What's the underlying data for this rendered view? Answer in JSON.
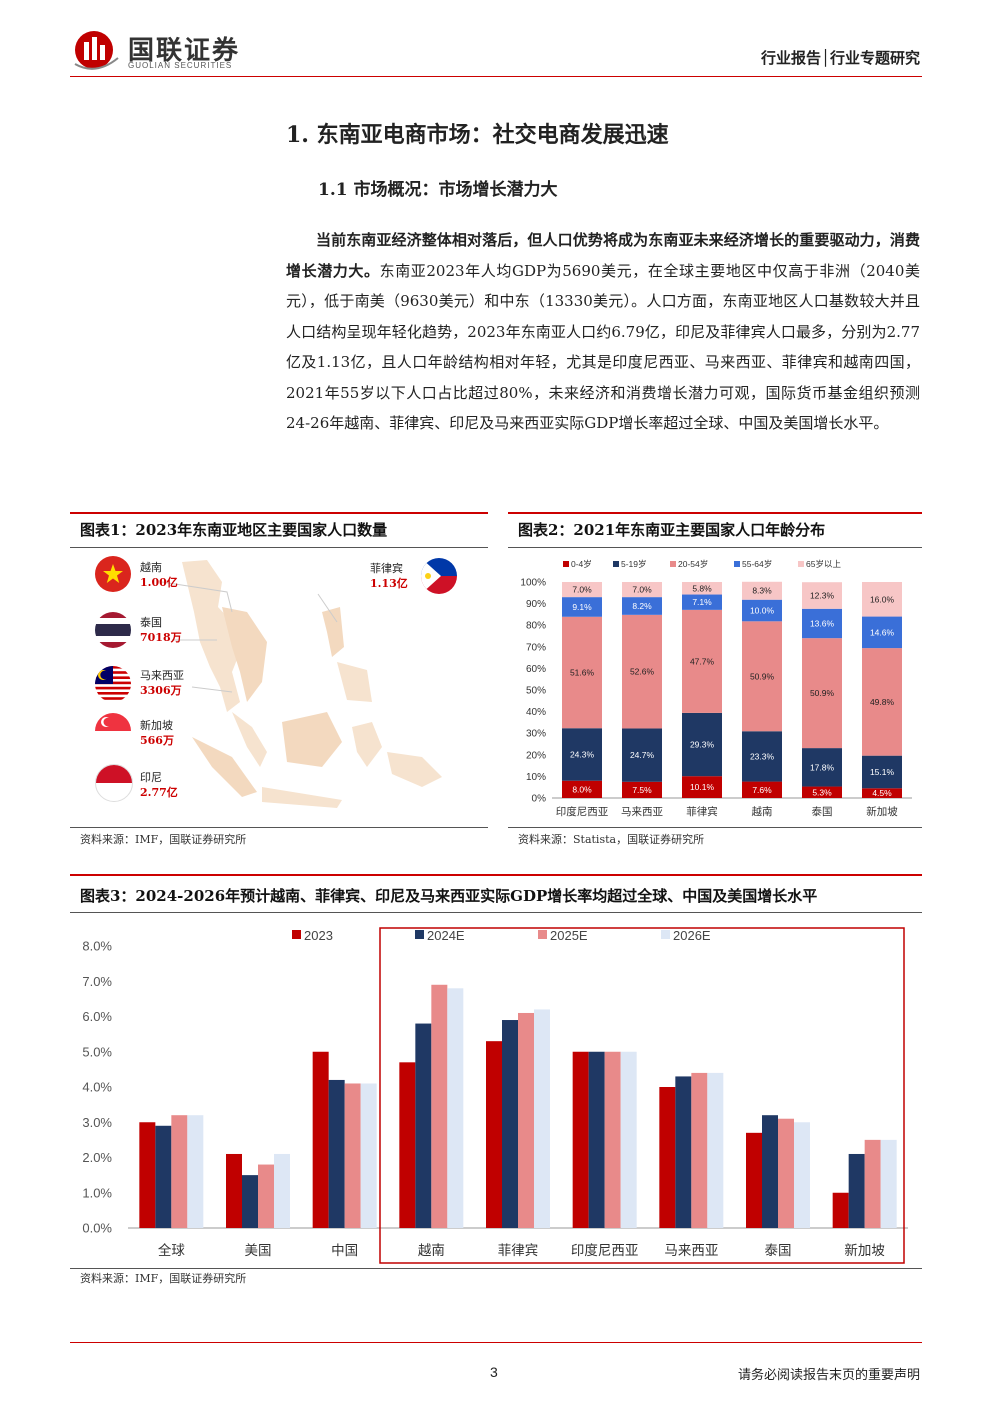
{
  "header": {
    "logo_cn": "国联证券",
    "logo_en": "GUOLIAN SECURITIES",
    "report_type": "行业报告│行业专题研究",
    "brand_color": "#c00000"
  },
  "section": {
    "h1": "1.  东南亚电商市场：社交电商发展迅速",
    "h2": "1.1 市场概况：市场增长潜力大"
  },
  "body": {
    "bold_lead": "当前东南亚经济整体相对落后，但人口优势将成为东南亚未来经济增长的重要驱动力，消费增长潜力大。",
    "text": "东南亚2023年人均GDP为5690美元，在全球主要地区中仅高于非洲（2040美元），低于南美（9630美元）和中东（13330美元）。人口方面，东南亚地区人口基数较大并且人口结构呈现年轻化趋势，2023年东南亚人口约6.79亿，印尼及菲律宾人口最多，分别为2.77亿及1.13亿，且人口年龄结构相对年轻，尤其是印度尼西亚、马来西亚、菲律宾和越南四国，2021年55岁以下人口占比超过80%，未来经济和消费增长潜力可观，国际货币基金组织预测24-26年越南、菲律宾、印尼及马来西亚实际GDP增长率超过全球、中国及美国增长水平。"
  },
  "fig1": {
    "title": "图表1：2023年东南亚地区主要国家人口数量",
    "source": "资料来源：IMF，国联证券研究所",
    "countries": [
      {
        "name": "越南",
        "value": "1.00亿",
        "flag": "vietnam-flag"
      },
      {
        "name": "泰国",
        "value": "7018万",
        "flag": "thailand-flag"
      },
      {
        "name": "马来西亚",
        "value": "3306万",
        "flag": "malaysia-flag"
      },
      {
        "name": "新加坡",
        "value": "566万",
        "flag": "singapore-flag"
      },
      {
        "name": "印尼",
        "value": "2.77亿",
        "flag": "indonesia-flag"
      },
      {
        "name": "菲律宾",
        "value": "1.13亿",
        "flag": "philippines-flag"
      }
    ]
  },
  "fig2": {
    "title": "图表2：2021年东南亚主要国家人口年龄分布",
    "source": "资料来源：Statista，国联证券研究所"
  },
  "fig3": {
    "title": "图表3：2024-2026年预计越南、菲律宾、印尼及马来西亚实际GDP增长率均超过全球、中国及美国增长水平",
    "source": "资料来源：IMF，国联证券研究所"
  },
  "chart_data": [
    {
      "type": "bar",
      "stacked": true,
      "categories": [
        "印度尼西亚",
        "马来西亚",
        "菲律宾",
        "越南",
        "泰国",
        "新加坡"
      ],
      "series": [
        {
          "name": "0-4岁",
          "color": "#c00000",
          "values": [
            8.0,
            7.5,
            10.1,
            7.6,
            5.3,
            4.5
          ]
        },
        {
          "name": "5-19岁",
          "color": "#1f3864",
          "values": [
            24.3,
            24.7,
            29.3,
            23.3,
            17.8,
            15.1
          ]
        },
        {
          "name": "20-54岁",
          "color": "#e88a8a",
          "values": [
            51.6,
            52.6,
            47.7,
            50.9,
            50.9,
            49.8
          ]
        },
        {
          "name": "55-64岁",
          "color": "#3a6fd8",
          "values": [
            9.1,
            8.2,
            7.1,
            10.0,
            13.6,
            14.6
          ]
        },
        {
          "name": "65岁以上",
          "color": "#f7c6c6",
          "values": [
            7.0,
            7.0,
            5.8,
            8.3,
            12.3,
            16.0
          ]
        }
      ],
      "data_labels": [
        [
          "8.0%",
          "7.5%",
          "10.1%",
          "7.6%",
          "5.3%",
          "4.5%"
        ],
        [
          "24.3%",
          "24.7%",
          "29.3%",
          "23.3%",
          "17.8%",
          "15.1%"
        ],
        [
          "51.6%",
          "52.6%",
          "47.7%",
          "50.9%",
          "50.9%",
          "49.8%"
        ],
        [
          "9.1%",
          "8.2%",
          "7.1%",
          "10.0%",
          "13.6%",
          "14.6%"
        ],
        [
          "7.0%",
          "7.0%",
          "5.8%",
          "8.3%",
          "12.3%",
          "16.0%"
        ]
      ],
      "ylim": [
        0,
        100
      ],
      "yticks": [
        "0%",
        "10%",
        "20%",
        "30%",
        "40%",
        "50%",
        "60%",
        "70%",
        "80%",
        "90%",
        "100%"
      ],
      "legend": "top"
    },
    {
      "type": "bar",
      "categories": [
        "全球",
        "美国",
        "中国",
        "越南",
        "菲律宾",
        "印度尼西亚",
        "马来西亚",
        "泰国",
        "新加坡"
      ],
      "series": [
        {
          "name": "2023",
          "color": "#c00000",
          "values": [
            3.0,
            2.1,
            5.0,
            4.7,
            5.3,
            5.0,
            4.0,
            2.7,
            1.0
          ]
        },
        {
          "name": "2024E",
          "color": "#1f3864",
          "values": [
            2.9,
            1.5,
            4.2,
            5.8,
            5.9,
            5.0,
            4.3,
            3.2,
            2.1
          ]
        },
        {
          "name": "2025E",
          "color": "#e88a8a",
          "values": [
            3.2,
            1.8,
            4.1,
            6.9,
            6.1,
            5.0,
            4.4,
            3.1,
            2.5
          ]
        },
        {
          "name": "2026E",
          "color": "#dde7f5",
          "values": [
            3.2,
            2.1,
            4.1,
            6.8,
            6.2,
            5.0,
            4.4,
            3.0,
            2.5
          ]
        }
      ],
      "ylim": [
        0,
        8
      ],
      "yticks": [
        "0.0%",
        "1.0%",
        "2.0%",
        "3.0%",
        "4.0%",
        "5.0%",
        "6.0%",
        "7.0%",
        "8.0%"
      ],
      "legend": "top",
      "highlight": "越南 to 新加坡",
      "highlight_color": "#c00000"
    }
  ],
  "footer": {
    "page": "3",
    "disclaimer": "请务必阅读报告末页的重要声明"
  }
}
